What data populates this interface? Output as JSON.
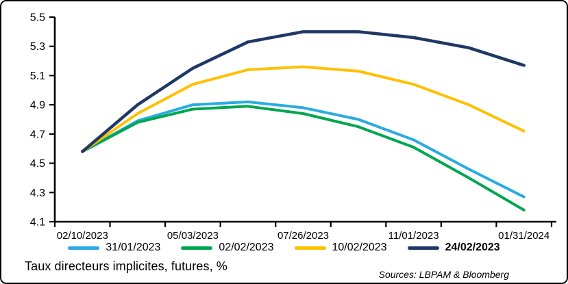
{
  "figure": {
    "footer_title": "Taux directeurs implicites, futures, %",
    "source_note": "Sources: LBPAM & Bloomberg"
  },
  "chart_data": {
    "type": "line",
    "title": "",
    "xlabel": "",
    "ylabel": "",
    "legend_position": "bottom",
    "grid": false,
    "y_axis": {
      "min": 4.1,
      "max": 5.5,
      "step": 0.2,
      "tick_labels": [
        "4.1",
        "4.3",
        "4.5",
        "4.7",
        "4.9",
        "5.1",
        "5.3",
        "5.5"
      ]
    },
    "x_labels": [
      "02/10/2023",
      "",
      "05/03/2023",
      "",
      "07/26/2023",
      "",
      "11/01/2023",
      "",
      "01/31/2024"
    ],
    "series": [
      {
        "name": "31/01/2023",
        "color": "#29ABE2",
        "bold": false,
        "line_width": 4,
        "values": [
          4.58,
          4.79,
          4.9,
          4.92,
          4.88,
          4.8,
          4.66,
          4.46,
          4.27
        ]
      },
      {
        "name": "02/02/2023",
        "color": "#00A651",
        "bold": false,
        "line_width": 4,
        "values": [
          4.58,
          4.78,
          4.87,
          4.89,
          4.84,
          4.75,
          4.61,
          4.4,
          4.18
        ]
      },
      {
        "name": "10/02/2023",
        "color": "#FFC000",
        "bold": false,
        "line_width": 4,
        "values": [
          4.58,
          4.84,
          5.04,
          5.14,
          5.16,
          5.13,
          5.04,
          4.9,
          4.72
        ]
      },
      {
        "name": "24/02/2023",
        "color": "#1F3864",
        "bold": true,
        "line_width": 4.5,
        "values": [
          4.58,
          4.9,
          5.15,
          5.33,
          5.4,
          5.4,
          5.36,
          5.29,
          5.17
        ]
      }
    ]
  }
}
